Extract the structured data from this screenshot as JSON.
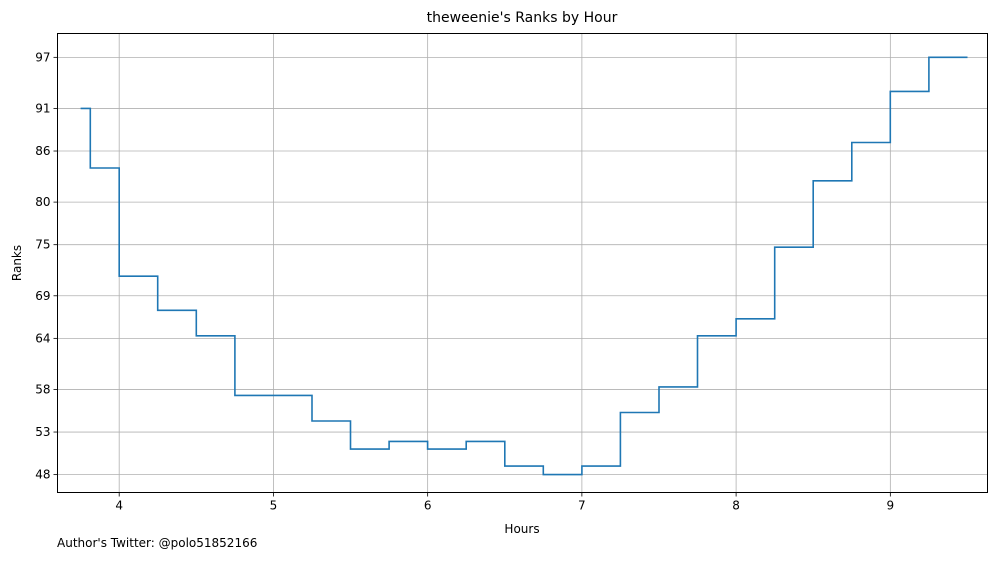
{
  "chart_data": {
    "type": "line",
    "step": true,
    "title": "theweenie's Ranks by Hour",
    "xlabel": "Hours",
    "ylabel": "Ranks",
    "xlim": [
      3.6,
      9.63
    ],
    "ylim": [
      99.8,
      45.9
    ],
    "y_inverted": true,
    "grid": true,
    "xticks": [
      4,
      5,
      6,
      7,
      8,
      9
    ],
    "yticks": [
      48,
      53,
      58,
      64,
      69,
      75,
      80,
      86,
      91,
      97
    ],
    "line_color": "#1f77b4",
    "x": [
      3.75,
      3.875,
      4.125,
      4.375,
      4.625,
      4.875,
      5.125,
      5.375,
      5.625,
      5.875,
      6.125,
      6.375,
      6.625,
      6.875,
      7.125,
      7.375,
      7.625,
      7.875,
      8.125,
      8.375,
      8.625,
      8.875,
      9.125,
      9.375,
      9.5
    ],
    "y": [
      91.0,
      84.0,
      71.3,
      67.3,
      64.3,
      57.3,
      57.3,
      54.3,
      51.0,
      51.9,
      51.0,
      51.9,
      49.0,
      48.0,
      49.0,
      55.3,
      58.3,
      64.3,
      66.3,
      74.7,
      82.5,
      87.0,
      93.0,
      97.0,
      97.0
    ]
  },
  "footer": {
    "credit": "Author's Twitter: @polo51852166"
  }
}
